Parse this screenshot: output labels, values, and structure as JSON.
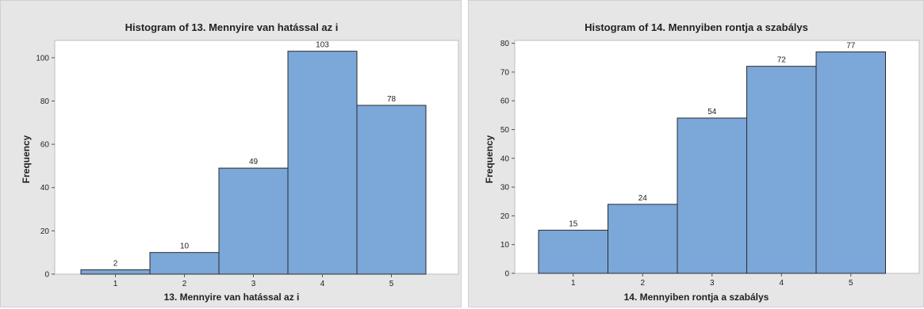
{
  "chart_data": [
    {
      "type": "bar",
      "title": "Histogram of 13. Mennyire van hatással  az i",
      "xlabel": "13. Mennyire van hatással  az i",
      "ylabel": "Frequency",
      "categories": [
        "1",
        "2",
        "3",
        "4",
        "5"
      ],
      "values": [
        2,
        10,
        49,
        103,
        78
      ],
      "data_labels": [
        "2",
        "10",
        "49",
        "103",
        "78"
      ],
      "ylim": [
        0,
        108
      ],
      "yticks": [
        0,
        20,
        40,
        60,
        80,
        100
      ],
      "bar_color": "#7ba7d9",
      "grid": false
    },
    {
      "type": "bar",
      "title": "Histogram of 14. Mennyiben rontja a szabálys",
      "xlabel": "14. Mennyiben rontja a szabálys",
      "ylabel": "Frequency",
      "categories": [
        "1",
        "2",
        "3",
        "4",
        "5"
      ],
      "values": [
        15,
        24,
        54,
        72,
        77
      ],
      "data_labels": [
        "15",
        "24",
        "54",
        "72",
        "77"
      ],
      "ylim": [
        0,
        81
      ],
      "yticks": [
        0,
        10,
        20,
        30,
        40,
        50,
        60,
        70,
        80
      ],
      "bar_color": "#7ba7d9",
      "grid": false
    }
  ]
}
